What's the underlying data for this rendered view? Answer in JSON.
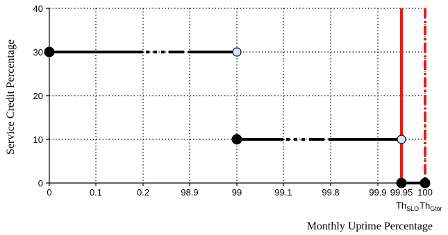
{
  "chart_data": {
    "type": "scatter",
    "xlabel": "Monthly Uptime Percentage",
    "ylabel": "Service Credit Percentage",
    "categories": [
      "0",
      "0.1",
      "0.2",
      "98.9",
      "99",
      "99.1",
      "99.8",
      "99.9",
      "99.95",
      "100"
    ],
    "yticks": [
      "0",
      "10",
      "20",
      "30",
      "40"
    ],
    "ylim": [
      0,
      40
    ],
    "grid": true,
    "threshold_labels": [
      {
        "main": "Th",
        "sub": "SLO",
        "at": "99.95"
      },
      {
        "main": "Th",
        "sub": "Gtor",
        "at": "100"
      }
    ],
    "series": [
      {
        "segments": [
          {
            "from": "0",
            "to": "0.2",
            "y": 30,
            "style": "solid"
          },
          {
            "from": "0.2",
            "to": "98.9",
            "y": 30,
            "style": "dash-dot-dot"
          },
          {
            "from": "98.9",
            "to": "99",
            "y": 30,
            "style": "solid"
          }
        ],
        "points": [
          {
            "x": "0",
            "y": 30,
            "fill": "closed"
          },
          {
            "x": "99",
            "y": 30,
            "fill": "open"
          }
        ]
      },
      {
        "segments": [
          {
            "from": "99",
            "to": "99.1",
            "y": 10,
            "style": "solid"
          },
          {
            "from": "99.1",
            "to": "99.8",
            "y": 10,
            "style": "dash-dot-dot"
          },
          {
            "from": "99.8",
            "to": "99.95",
            "y": 10,
            "style": "solid"
          }
        ],
        "points": [
          {
            "x": "99",
            "y": 10,
            "fill": "closed"
          },
          {
            "x": "99.95",
            "y": 10,
            "fill": "open"
          }
        ]
      },
      {
        "segments": [
          {
            "from": "99.95",
            "to": "100",
            "y": 0,
            "style": "solid"
          }
        ],
        "points": [
          {
            "x": "99.95",
            "y": 0,
            "fill": "closed"
          },
          {
            "x": "100",
            "y": 0,
            "fill": "closed"
          }
        ]
      }
    ],
    "vertical_lines": [
      {
        "x": "99.95",
        "style": "solid",
        "color": "#e0201b"
      },
      {
        "x": "100",
        "style": "dash-dot",
        "color": "#e0201b"
      }
    ],
    "colors": {
      "line": "#000000",
      "open_marker": "#d8e4f2",
      "threshold": "#e0201b",
      "grid": "#000000"
    }
  }
}
